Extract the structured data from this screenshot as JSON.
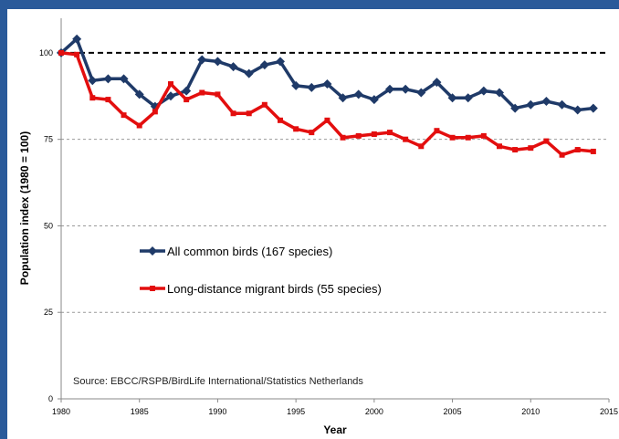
{
  "colors": {
    "frame": "#2a5a9a",
    "all_birds": "#1f3a68",
    "migrant_birds": "#e30e0e",
    "reference_line": "#000000",
    "grid": "#9a9a9a"
  },
  "chart_data": {
    "type": "line",
    "title": "",
    "xlabel": "Year",
    "ylabel": "Population index (1980 = 100)",
    "xlim": [
      1980,
      2015
    ],
    "ylim": [
      0,
      110
    ],
    "x_ticks": [
      1980,
      1985,
      1990,
      1995,
      2000,
      2005,
      2010,
      2015
    ],
    "x_tick_labels": [
      "1980",
      "1985",
      "1990",
      "1995",
      "2000",
      "2005",
      "2010",
      "2015"
    ],
    "y_ticks": [
      0,
      25,
      50,
      75,
      100
    ],
    "y_tick_labels": [
      "0",
      "25",
      "50",
      "75",
      "100"
    ],
    "grid": "horizontal dashed",
    "reference_line": 100,
    "legend_position": "left-middle",
    "annotation": "Source: EBCC/RSPB/BirdLife International/Statistics Netherlands",
    "x": [
      1980,
      1981,
      1982,
      1983,
      1984,
      1985,
      1986,
      1987,
      1988,
      1989,
      1990,
      1991,
      1992,
      1993,
      1994,
      1995,
      1996,
      1997,
      1998,
      1999,
      2000,
      2001,
      2002,
      2003,
      2004,
      2005,
      2006,
      2007,
      2008,
      2009,
      2010,
      2011,
      2012,
      2013,
      2014
    ],
    "series": [
      {
        "name": "All common birds (167 species)",
        "color": "#1f3a68",
        "marker": "diamond",
        "values": [
          100,
          104,
          92,
          92.5,
          92.5,
          88,
          84.5,
          87.5,
          89,
          98,
          97.5,
          96,
          94,
          96.5,
          97.5,
          90.5,
          90,
          91,
          87,
          88,
          86.5,
          89.5,
          89.5,
          88.5,
          91.5,
          87,
          87,
          89,
          88.5,
          84,
          85,
          86,
          85,
          83.5,
          84
        ]
      },
      {
        "name": "Long-distance migrant birds (55 species)",
        "color": "#e30e0e",
        "marker": "square",
        "values": [
          100,
          99.5,
          87,
          86.5,
          82,
          79,
          83,
          91,
          86.5,
          88.5,
          88,
          82.5,
          82.5,
          85,
          80.5,
          78,
          77,
          80.5,
          75.5,
          76,
          76.5,
          77,
          75,
          73,
          77.5,
          75.5,
          75.5,
          76,
          73,
          72,
          72.5,
          74.5,
          70.5,
          72,
          71.5
        ]
      }
    ]
  }
}
